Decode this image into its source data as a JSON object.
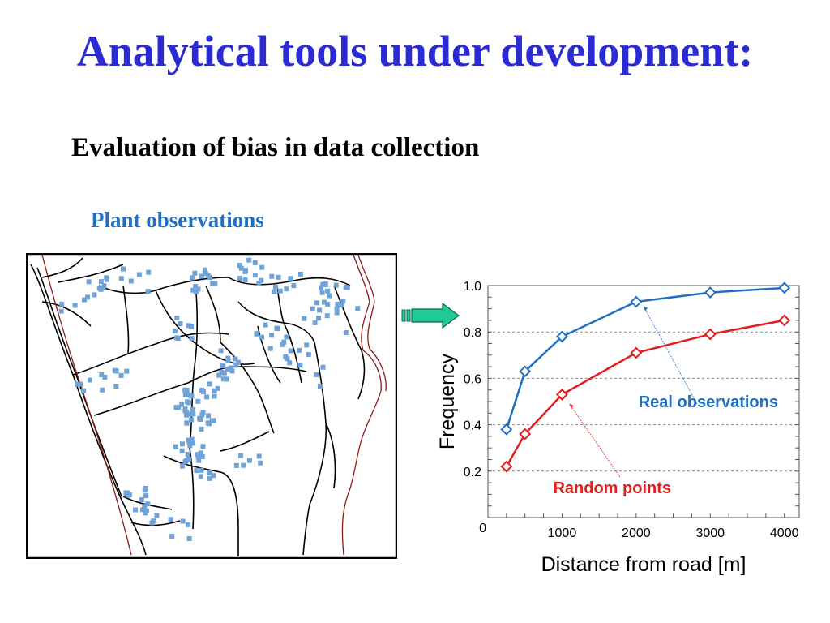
{
  "slide": {
    "title": "Analytical tools under development:",
    "subtitle": "Evaluation of bias in data collection",
    "map_caption": "Plant observations"
  },
  "colors": {
    "title": "#2b2bd3",
    "caption": "#1f6fc2",
    "map_points": "#6fa3d8",
    "coast": "#8b1a1a",
    "arrow": "#20c997",
    "real_series": "#1f6fc2",
    "random_series": "#e01e1e"
  },
  "chart_data": {
    "type": "line",
    "xlabel": "Distance from road [m]",
    "ylabel": "Frequency",
    "xlim": [
      0,
      4200
    ],
    "ylim": [
      0,
      1.0
    ],
    "xticks": [
      0,
      1000,
      2000,
      3000,
      4000
    ],
    "yticks": [
      0.2,
      0.4,
      0.6,
      0.8,
      1.0
    ],
    "xtick_labels": [
      "1000",
      "2000",
      "3000",
      "4000"
    ],
    "ytick_labels": [
      "0.2",
      "0.4",
      "0.6",
      "0.8",
      "1.0"
    ],
    "origin_label": "0",
    "grid": "horizontal dashed",
    "marker": "diamond",
    "series": [
      {
        "name": "Real observations",
        "color": "#1f6fc2",
        "x": [
          250,
          500,
          1000,
          2000,
          3000,
          4000
        ],
        "y": [
          0.38,
          0.63,
          0.78,
          0.93,
          0.97,
          0.99
        ]
      },
      {
        "name": "Random points",
        "color": "#e01e1e",
        "x": [
          250,
          500,
          1000,
          2000,
          3000,
          4000
        ],
        "y": [
          0.22,
          0.36,
          0.53,
          0.71,
          0.79,
          0.85
        ]
      }
    ]
  }
}
